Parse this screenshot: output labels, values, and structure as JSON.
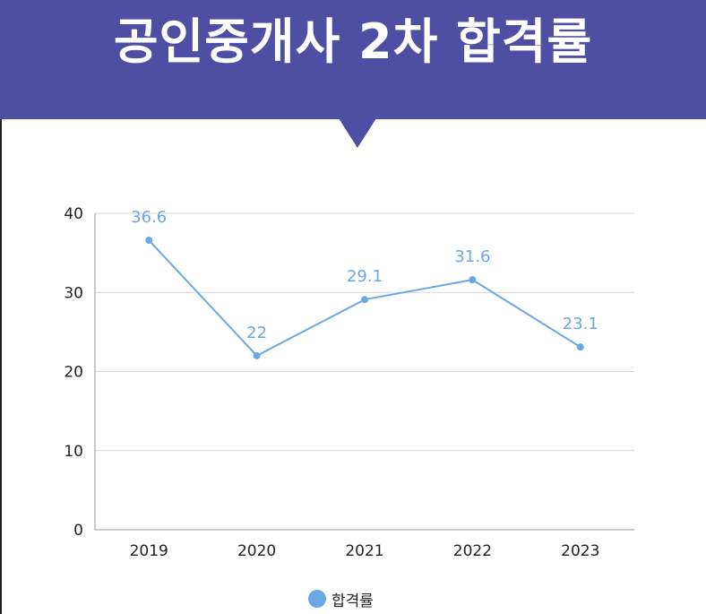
{
  "banner": {
    "title": "공인중개사 2차 합격률"
  },
  "colors": {
    "banner": "#4e4fa3",
    "series": "#6aa8e4",
    "grid": "#d6d6d6",
    "axis": "#9a9a9a"
  },
  "chart_data": {
    "type": "line",
    "title": "공인중개사 2차 합격률",
    "categories": [
      "2019",
      "2020",
      "2021",
      "2022",
      "2023"
    ],
    "series": [
      {
        "name": "합격률",
        "values": [
          36.6,
          22,
          29.1,
          31.6,
          23.1
        ],
        "labels": [
          "36.6",
          "22",
          "29.1",
          "31.6",
          "23.1"
        ]
      }
    ],
    "yticks": [
      "0",
      "10",
      "20",
      "30",
      "40"
    ],
    "ylim": [
      0,
      40
    ],
    "grid": true,
    "legend": "bottom-center"
  }
}
